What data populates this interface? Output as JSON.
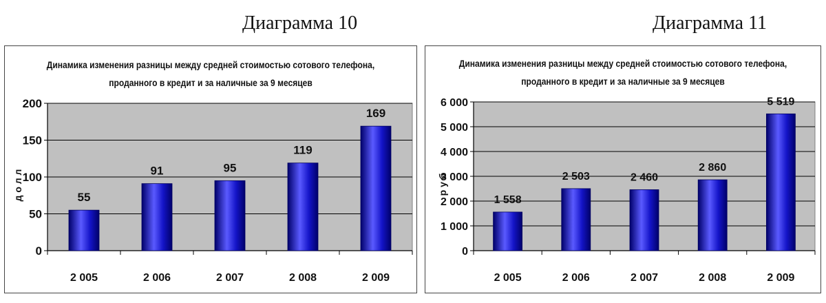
{
  "captions": [
    "Диаграмма 10",
    "Диаграмма 11"
  ],
  "chart_data": [
    {
      "type": "bar",
      "title_lines": [
        "Динамика изменения разницы между средней стоимостью сотового телефона,",
        "проданного в кредит и за наличные за 9 месяцев"
      ],
      "categories": [
        "2 005",
        "2 006",
        "2 007",
        "2 008",
        "2 009"
      ],
      "values": [
        55,
        91,
        95,
        119,
        169
      ],
      "value_labels": [
        "55",
        "91",
        "95",
        "119",
        "169"
      ],
      "xlabel": "",
      "ylabel": "д о л л",
      "ylim": [
        0,
        200
      ],
      "yticks": [
        0,
        50,
        100,
        150,
        200
      ],
      "ytick_labels": [
        "0",
        "50",
        "100",
        "150",
        "200"
      ],
      "grid": true,
      "legend": "none",
      "colors": {
        "bar": "#1414c8",
        "bar_dark": "#00006a",
        "bar_light": "#5a5aff",
        "plot_bg": "#c0c0c0"
      }
    },
    {
      "type": "bar",
      "title_lines": [
        "Динамика изменения разницы между средней стоимостью сотового телефона,",
        "проданного в кредит и за наличные за 9 месяцев"
      ],
      "categories": [
        "2 005",
        "2 006",
        "2 007",
        "2 008",
        "2 009"
      ],
      "values": [
        1558,
        2503,
        2460,
        2860,
        5519
      ],
      "value_labels": [
        "1 558",
        "2 503",
        "2 460",
        "2 860",
        "5 519"
      ],
      "xlabel": "",
      "ylabel": "р у б",
      "ylim": [
        0,
        6000
      ],
      "yticks": [
        0,
        1000,
        2000,
        3000,
        4000,
        5000,
        6000
      ],
      "ytick_labels": [
        "0",
        "1 000",
        "2 000",
        "3 000",
        "4 000",
        "5 000",
        "6 000"
      ],
      "grid": true,
      "legend": "none",
      "colors": {
        "bar": "#1414c8",
        "bar_dark": "#00006a",
        "bar_light": "#5a5aff",
        "plot_bg": "#c0c0c0"
      }
    }
  ]
}
